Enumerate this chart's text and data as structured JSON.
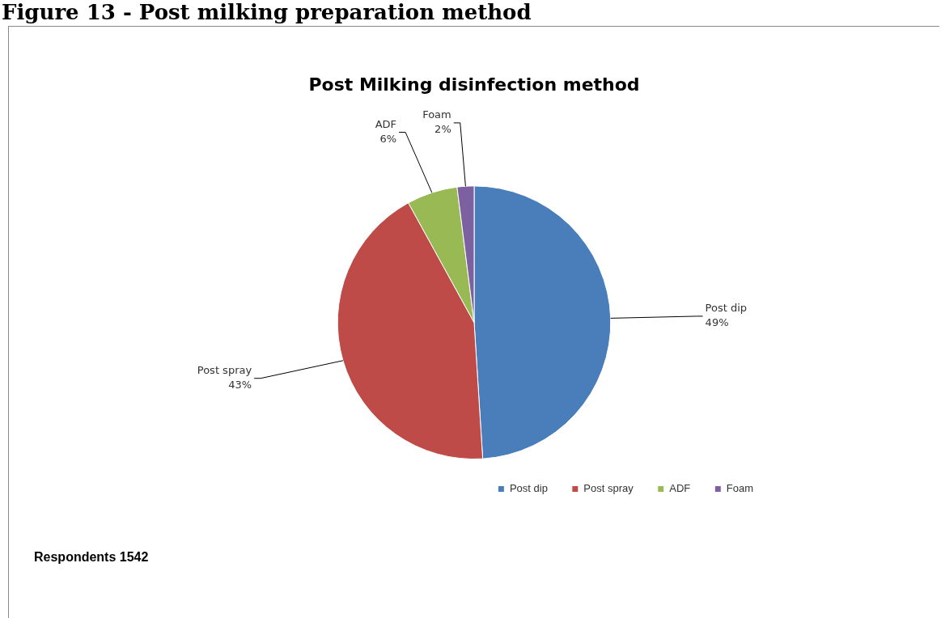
{
  "chart_data": {
    "type": "pie",
    "title": "Post Milking disinfection method",
    "categories": [
      "Post dip",
      "Post spray",
      "ADF",
      "Foam"
    ],
    "values": [
      49,
      43,
      6,
      2
    ],
    "value_labels": [
      "49%",
      "43%",
      "6%",
      "2%"
    ],
    "colors": [
      "#4a7ebb",
      "#be4b48",
      "#98b954",
      "#7d60a0"
    ],
    "legend": "bottom",
    "annotations": [
      "Figure 13 - Post milking preparation method",
      "Respondents 1542"
    ]
  }
}
